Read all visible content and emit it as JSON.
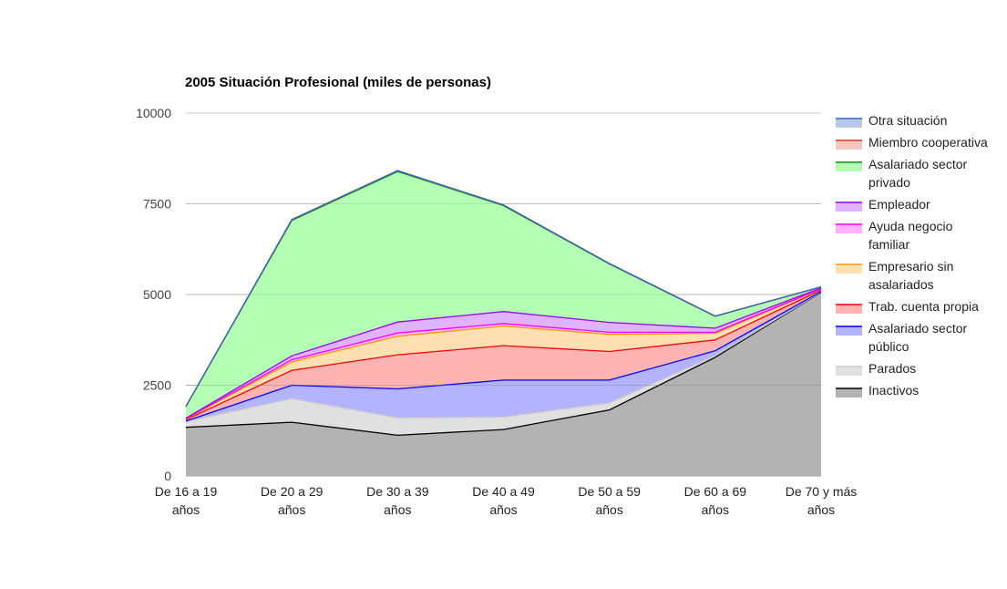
{
  "chart_data": {
    "type": "area",
    "stacked": true,
    "title": "2005 Situación Profesional (miles de personas)",
    "xlabel": "",
    "ylabel": "",
    "ylim": [
      0,
      10000
    ],
    "yticks": [
      0,
      2500,
      5000,
      7500,
      10000
    ],
    "grid": true,
    "legend_position": "right",
    "categories": [
      [
        "De 16 a 19",
        "años"
      ],
      [
        "De 20 a 29",
        "años"
      ],
      [
        "De 30 a 39",
        "años"
      ],
      [
        "De 40 a 49",
        "años"
      ],
      [
        "De 50 a 59",
        "años"
      ],
      [
        "De 60 a 69",
        "años"
      ],
      [
        "De 70 y más",
        "años"
      ]
    ],
    "series": [
      {
        "name": "Inactivos",
        "color": "#000000",
        "fill": "#b3b3b3",
        "values": [
          1340,
          1480,
          1120,
          1280,
          1820,
          3270,
          5060
        ]
      },
      {
        "name": "Parados",
        "color": "#cccccc",
        "fill": "#e0e0e0",
        "values": [
          150,
          650,
          480,
          340,
          190,
          40,
          10
        ]
      },
      {
        "name": "Asalariado sector público",
        "color": "#0000ff",
        "fill": "#b3b3ff",
        "values": [
          20,
          370,
          800,
          1020,
          630,
          140,
          10
        ]
      },
      {
        "name": "Trab. cuenta propia",
        "color": "#ff0000",
        "fill": "#ffb3b3",
        "values": [
          40,
          410,
          940,
          950,
          790,
          300,
          40
        ]
      },
      {
        "name": "Empresario sin asalariados",
        "color": "#ff9900",
        "fill": "#ffe0b3",
        "values": [
          20,
          230,
          510,
          540,
          470,
          180,
          30
        ]
      },
      {
        "name": "Ayuda negocio familiar",
        "color": "#ff00ff",
        "fill": "#ffb3ff",
        "values": [
          10,
          60,
          90,
          70,
          60,
          30,
          10
        ]
      },
      {
        "name": "Empleador",
        "color": "#9900ff",
        "fill": "#e0b3ff",
        "values": [
          10,
          110,
          300,
          330,
          270,
          110,
          20
        ]
      },
      {
        "name": "Asalariado sector privado",
        "color": "#009900",
        "fill": "#b3ffb3",
        "values": [
          320,
          3730,
          4150,
          2920,
          1610,
          330,
          30
        ]
      },
      {
        "name": "Miembro cooperativa",
        "color": "#dc3912",
        "fill": "#f4c7c0",
        "values": [
          5,
          20,
          20,
          15,
          10,
          5,
          0
        ]
      },
      {
        "name": "Otra situación",
        "color": "#3366cc",
        "fill": "#b8c9e6",
        "values": [
          2,
          5,
          5,
          5,
          5,
          2,
          0
        ]
      }
    ],
    "legend": [
      {
        "lines": [
          "Otra situación"
        ],
        "color": "#3366cc",
        "fill": "#b8c9e6"
      },
      {
        "lines": [
          "Miembro cooperativa"
        ],
        "color": "#dc3912",
        "fill": "#f4c7c0"
      },
      {
        "lines": [
          "Asalariado sector",
          "privado"
        ],
        "color": "#009900",
        "fill": "#b3ffb3"
      },
      {
        "lines": [
          "Empleador"
        ],
        "color": "#9900ff",
        "fill": "#e0b3ff"
      },
      {
        "lines": [
          "Ayuda negocio",
          "familiar"
        ],
        "color": "#ff00ff",
        "fill": "#ffb3ff"
      },
      {
        "lines": [
          "Empresario sin",
          "asalariados"
        ],
        "color": "#ff9900",
        "fill": "#ffe0b3"
      },
      {
        "lines": [
          "Trab. cuenta propia"
        ],
        "color": "#ff0000",
        "fill": "#ffb3b3"
      },
      {
        "lines": [
          "Asalariado sector",
          "público"
        ],
        "color": "#0000ff",
        "fill": "#b3b3ff"
      },
      {
        "lines": [
          "Parados"
        ],
        "color": "#cccccc",
        "fill": "#e0e0e0"
      },
      {
        "lines": [
          "Inactivos"
        ],
        "color": "#000000",
        "fill": "#b3b3b3"
      }
    ]
  }
}
